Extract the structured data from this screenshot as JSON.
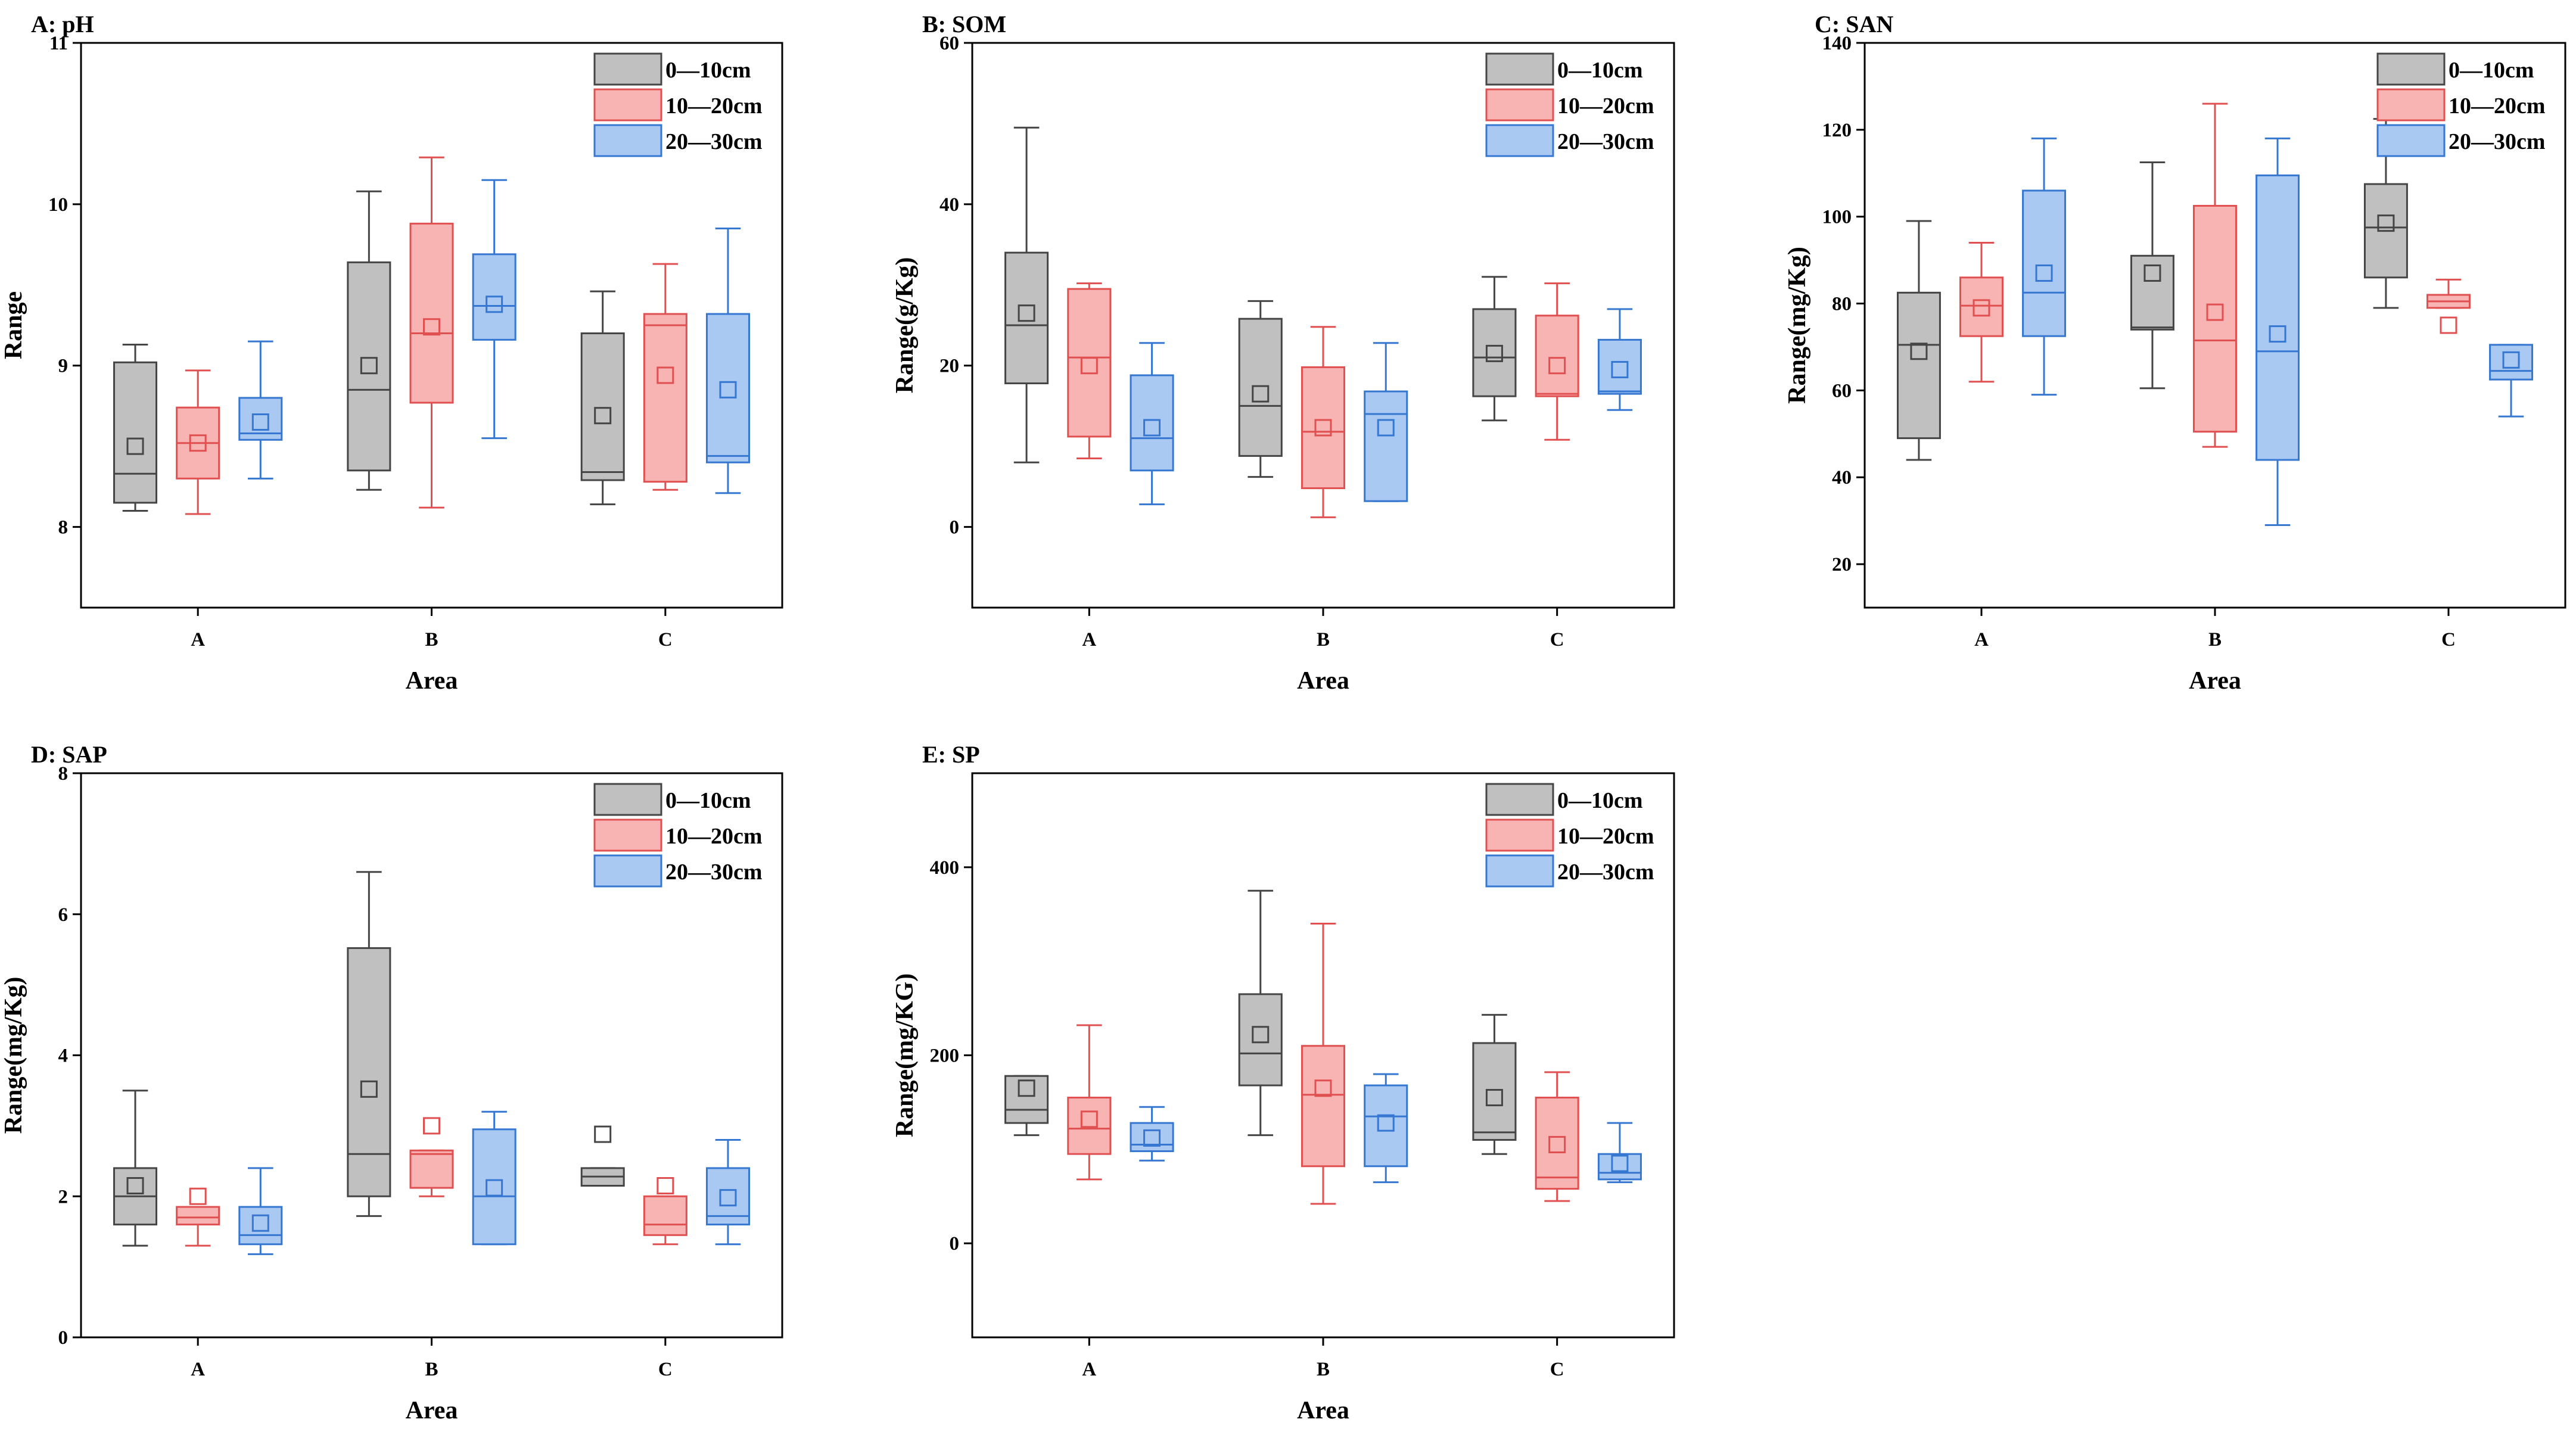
{
  "figure": {
    "series": [
      {
        "name": "0—10cm",
        "fill": "#c0c0c0",
        "stroke": "#454545"
      },
      {
        "name": "10—20cm",
        "fill": "#f8b3b3",
        "stroke": "#e05050"
      },
      {
        "name": "20—30cm",
        "fill": "#a9c8f2",
        "stroke": "#3577d1"
      }
    ]
  },
  "chart_data": [
    {
      "id": "A",
      "type": "boxplot",
      "title": "A:   pH",
      "xlabel": "Area",
      "ylabel": "Range",
      "categories": [
        "A",
        "B",
        "C"
      ],
      "ylim": [
        7.5,
        11
      ],
      "yticks": [
        8,
        9,
        10,
        11
      ],
      "boxes": [
        [
          {
            "min": 8.1,
            "q1": 8.15,
            "median": 8.33,
            "q3": 9.02,
            "max": 9.13,
            "mean": 8.5
          },
          {
            "min": 8.08,
            "q1": 8.3,
            "median": 8.52,
            "q3": 8.74,
            "max": 8.97,
            "mean": 8.52
          },
          {
            "min": 8.3,
            "q1": 8.54,
            "median": 8.58,
            "q3": 8.8,
            "max": 9.15,
            "mean": 8.65
          }
        ],
        [
          {
            "min": 8.23,
            "q1": 8.35,
            "median": 8.85,
            "q3": 9.64,
            "max": 10.08,
            "mean": 9.0
          },
          {
            "min": 8.12,
            "q1": 8.77,
            "median": 9.2,
            "q3": 9.88,
            "max": 10.29,
            "mean": 9.24
          },
          {
            "min": 8.55,
            "q1": 9.16,
            "median": 9.37,
            "q3": 9.69,
            "max": 10.15,
            "mean": 9.38
          }
        ],
        [
          {
            "min": 8.14,
            "q1": 8.29,
            "median": 8.34,
            "q3": 9.2,
            "max": 9.46,
            "mean": 8.69
          },
          {
            "min": 8.23,
            "q1": 8.28,
            "median": 9.25,
            "q3": 9.32,
            "max": 9.63,
            "mean": 8.94
          },
          {
            "min": 8.21,
            "q1": 8.4,
            "median": 8.44,
            "q3": 9.32,
            "max": 9.85,
            "mean": 8.85
          }
        ]
      ]
    },
    {
      "id": "B",
      "type": "boxplot",
      "title": "B:   SOM",
      "xlabel": "Area",
      "ylabel": "Range(g/Kg)",
      "categories": [
        "A",
        "B",
        "C"
      ],
      "ylim": [
        -10,
        60
      ],
      "yticks": [
        0,
        20,
        40,
        60
      ],
      "boxes": [
        [
          {
            "min": 8,
            "q1": 17.8,
            "median": 25,
            "q3": 34,
            "max": 49.5,
            "mean": 26.5
          },
          {
            "min": 8.5,
            "q1": 11.2,
            "median": 21,
            "q3": 29.5,
            "max": 30.2,
            "mean": 20
          },
          {
            "min": 2.8,
            "q1": 7,
            "median": 11,
            "q3": 18.8,
            "max": 22.8,
            "mean": 12.3
          }
        ],
        [
          {
            "min": 6.2,
            "q1": 8.8,
            "median": 15,
            "q3": 25.8,
            "max": 28,
            "mean": 16.5
          },
          {
            "min": 1.2,
            "q1": 4.8,
            "median": 11.8,
            "q3": 19.8,
            "max": 24.8,
            "mean": 12.3
          },
          {
            "min": 3.2,
            "q1": 3.2,
            "median": 14,
            "q3": 16.8,
            "max": 22.8,
            "mean": 12.3
          }
        ],
        [
          {
            "min": 13.2,
            "q1": 16.2,
            "median": 21,
            "q3": 27,
            "max": 31,
            "mean": 21.5
          },
          {
            "min": 10.8,
            "q1": 16.2,
            "median": 16.5,
            "q3": 26.2,
            "max": 30.2,
            "mean": 20
          },
          {
            "min": 14.5,
            "q1": 16.5,
            "median": 16.8,
            "q3": 23.2,
            "max": 27,
            "mean": 19.5
          }
        ]
      ]
    },
    {
      "id": "C",
      "type": "boxplot",
      "title": "C:   SAN",
      "xlabel": "Area",
      "ylabel": "Range(mg/Kg)",
      "categories": [
        "A",
        "B",
        "C"
      ],
      "ylim": [
        10,
        140
      ],
      "yticks": [
        20,
        40,
        60,
        80,
        100,
        120,
        140
      ],
      "boxes": [
        [
          {
            "min": 44,
            "q1": 49,
            "median": 70.5,
            "q3": 82.5,
            "max": 99,
            "mean": 69
          },
          {
            "min": 62,
            "q1": 72.5,
            "median": 79.5,
            "q3": 86,
            "max": 94,
            "mean": 79
          },
          {
            "min": 59,
            "q1": 72.5,
            "median": 82.5,
            "q3": 106,
            "max": 118,
            "mean": 87
          }
        ],
        [
          {
            "min": 60.5,
            "q1": 74,
            "median": 74.5,
            "q3": 91,
            "max": 112.5,
            "mean": 87
          },
          {
            "min": 47,
            "q1": 50.5,
            "median": 71.5,
            "q3": 102.5,
            "max": 126,
            "mean": 78
          },
          {
            "min": 29,
            "q1": 44,
            "median": 69,
            "q3": 109.5,
            "max": 118,
            "mean": 73
          }
        ],
        [
          {
            "min": 79,
            "q1": 86,
            "median": 97.5,
            "q3": 107.5,
            "max": 122.5,
            "mean": 98.5
          },
          {
            "min": 79,
            "q1": 79,
            "median": 80.5,
            "q3": 82,
            "max": 85.5,
            "mean": 75
          },
          {
            "min": 54,
            "q1": 62.5,
            "median": 64.5,
            "q3": 70.5,
            "max": 70.5,
            "mean": 67
          }
        ]
      ]
    },
    {
      "id": "D",
      "type": "boxplot",
      "title": "D:   SAP",
      "xlabel": "Area",
      "ylabel": "Range(mg/Kg)",
      "categories": [
        "A",
        "B",
        "C"
      ],
      "ylim": [
        0,
        8
      ],
      "yticks": [
        0,
        2,
        4,
        6,
        8
      ],
      "boxes": [
        [
          {
            "min": 1.3,
            "q1": 1.6,
            "median": 2.0,
            "q3": 2.4,
            "max": 3.5,
            "mean": 2.15
          },
          {
            "min": 1.3,
            "q1": 1.6,
            "median": 1.7,
            "q3": 1.85,
            "max": 1.85,
            "mean": 2.0
          },
          {
            "min": 1.18,
            "q1": 1.32,
            "median": 1.45,
            "q3": 1.85,
            "max": 2.4,
            "mean": 1.62
          }
        ],
        [
          {
            "min": 1.72,
            "q1": 2.0,
            "median": 2.6,
            "q3": 5.52,
            "max": 6.6,
            "mean": 3.52
          },
          {
            "min": 2.0,
            "q1": 2.12,
            "median": 2.6,
            "q3": 2.65,
            "max": 2.65,
            "mean": 3.0
          },
          {
            "min": 1.32,
            "q1": 1.32,
            "median": 2.0,
            "q3": 2.95,
            "max": 3.2,
            "mean": 2.12
          }
        ],
        [
          {
            "min": 2.15,
            "q1": 2.15,
            "median": 2.28,
            "q3": 2.4,
            "max": 2.4,
            "mean": 2.88
          },
          {
            "min": 1.32,
            "q1": 1.45,
            "median": 1.6,
            "q3": 2.0,
            "max": 2.0,
            "mean": 2.15
          },
          {
            "min": 1.32,
            "q1": 1.6,
            "median": 1.72,
            "q3": 2.4,
            "max": 2.8,
            "mean": 1.98
          }
        ]
      ]
    },
    {
      "id": "E",
      "type": "boxplot",
      "title": "E:   SP",
      "xlabel": "Area",
      "ylabel": "Range(mg/KG)",
      "categories": [
        "A",
        "B",
        "C"
      ],
      "ylim": [
        -100,
        500
      ],
      "yticks": [
        0,
        200,
        400
      ],
      "boxes": [
        [
          {
            "min": 115,
            "q1": 128,
            "median": 142,
            "q3": 178,
            "max": 178,
            "mean": 165
          },
          {
            "min": 68,
            "q1": 95,
            "median": 122,
            "q3": 155,
            "max": 232,
            "mean": 132
          },
          {
            "min": 88,
            "q1": 98,
            "median": 105,
            "q3": 128,
            "max": 145,
            "mean": 112
          }
        ],
        [
          {
            "min": 115,
            "q1": 168,
            "median": 202,
            "q3": 265,
            "max": 375,
            "mean": 222
          },
          {
            "min": 42,
            "q1": 82,
            "median": 158,
            "q3": 210,
            "max": 340,
            "mean": 165
          },
          {
            "min": 65,
            "q1": 82,
            "median": 135,
            "q3": 168,
            "max": 180,
            "mean": 128
          }
        ],
        [
          {
            "min": 95,
            "q1": 110,
            "median": 118,
            "q3": 213,
            "max": 243,
            "mean": 155
          },
          {
            "min": 45,
            "q1": 58,
            "median": 70,
            "q3": 155,
            "max": 182,
            "mean": 105
          },
          {
            "min": 65,
            "q1": 68,
            "median": 75,
            "q3": 95,
            "max": 128,
            "mean": 85
          }
        ]
      ]
    }
  ]
}
